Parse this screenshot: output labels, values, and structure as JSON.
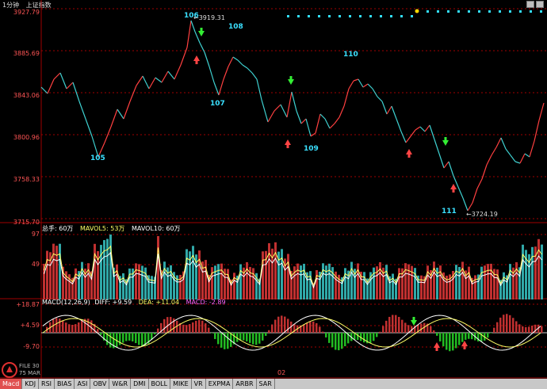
{
  "header": {
    "period": "1分钟",
    "index_name": "上证指数"
  },
  "price_axis": [
    "3927.79",
    "3885.69",
    "3843.06",
    "3800.96",
    "3758.33",
    "3715.70"
  ],
  "annotations": {
    "high_value": "3919.31",
    "low_value": "3724.19"
  },
  "wave_labels": [
    "106",
    "108",
    "110",
    "105",
    "107",
    "109",
    "111"
  ],
  "volume_panel": {
    "max_label": "97",
    "mid_label": "49",
    "vol_label": "总手: 60万",
    "mavol5_label": "MAVOL5: 53万",
    "mavol10_label": "MAVOL10: 60万"
  },
  "macd_panel": {
    "title": "MACD(12,26,9)",
    "diff_label": "DIFF: +9.59",
    "dea_label": "DEA: +11.04",
    "macd_label": "MACD: -2.89",
    "axis": [
      "+18.87",
      "+4.59",
      "-9.70"
    ]
  },
  "date_marker": "02",
  "logo": {
    "line1": "FILE 30",
    "line2": "75 MAR"
  },
  "tabs": [
    "Macd",
    "KDJ",
    "RSI",
    "BIAS",
    "ASI",
    "OBV",
    "W&R",
    "DMI",
    "BOLL",
    "MIKE",
    "VR",
    "EXPMA",
    "ARBR",
    "SAR"
  ],
  "colors": {
    "up": "#ff4040",
    "down": "#3ed0d0",
    "axis": "#a00000",
    "cyan_dot": "#33e0ff",
    "yellow_dot": "#ffd700",
    "ma_white": "#ffffff",
    "ma_yellow": "#ffff66"
  }
}
